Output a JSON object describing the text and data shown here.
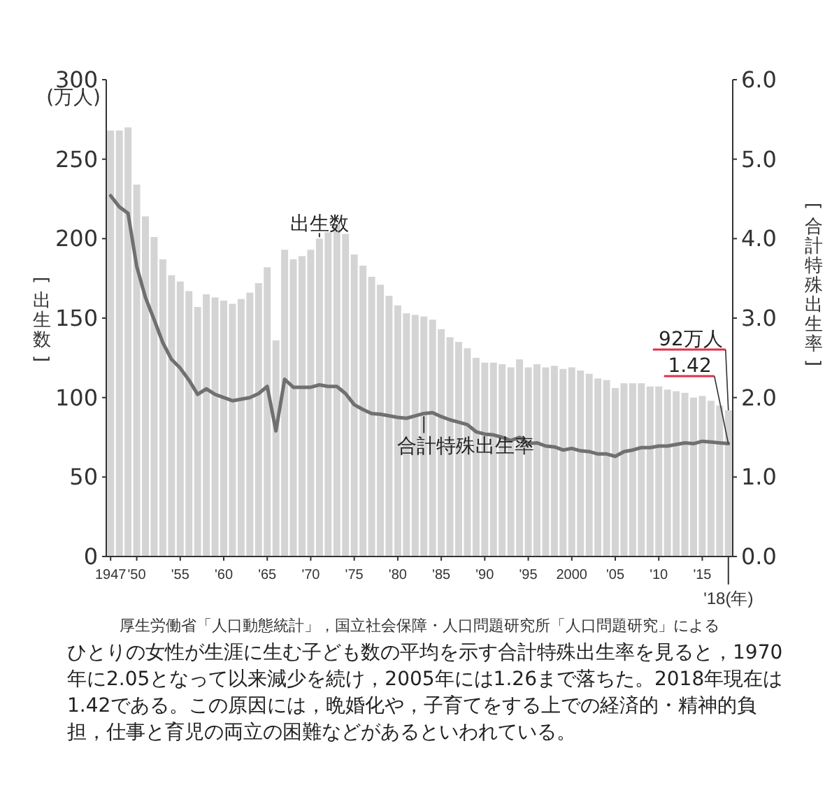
{
  "chart_data": {
    "type": "bar",
    "categories": [
      "1947",
      null,
      null,
      "'50",
      null,
      null,
      null,
      null,
      "'55",
      null,
      null,
      null,
      null,
      "'60",
      null,
      null,
      null,
      null,
      "'65",
      null,
      null,
      null,
      null,
      "'70",
      null,
      null,
      null,
      null,
      "'75",
      null,
      null,
      null,
      null,
      "'80",
      null,
      null,
      null,
      null,
      "'85",
      null,
      null,
      null,
      null,
      "'90",
      null,
      null,
      null,
      null,
      "'95",
      null,
      null,
      null,
      null,
      "2000",
      null,
      null,
      null,
      null,
      "'05",
      null,
      null,
      null,
      null,
      "'10",
      null,
      null,
      null,
      null,
      "'15",
      null,
      null,
      "'18(年)"
    ],
    "series": [
      {
        "name": "出生数",
        "type": "bar",
        "color": "#d4d4d4",
        "values": [
          268,
          268,
          270,
          234,
          214,
          201,
          187,
          177,
          173,
          167,
          157,
          165,
          163,
          161,
          159,
          162,
          166,
          172,
          182,
          136,
          193,
          187,
          189,
          193,
          200,
          204,
          209,
          203,
          190,
          183,
          176,
          171,
          164,
          158,
          153,
          152,
          151,
          149,
          143,
          138,
          135,
          131,
          125,
          122,
          122,
          121,
          119,
          124,
          119,
          121,
          119,
          120,
          118,
          119,
          117,
          115,
          112,
          111,
          106,
          109,
          109,
          109,
          107,
          107,
          105,
          104,
          103,
          100,
          101,
          98,
          95,
          92
        ],
        "value_labels": [
          null,
          null,
          null,
          null,
          null,
          null,
          null,
          null,
          null,
          null,
          null,
          null,
          null,
          null,
          null,
          null,
          null,
          null,
          null,
          null,
          null,
          null,
          null,
          null,
          null,
          null,
          null,
          null,
          null,
          null,
          null,
          null,
          null,
          null,
          null,
          null,
          null,
          null,
          null,
          null,
          null,
          null,
          null,
          null,
          null,
          null,
          null,
          null,
          null,
          null,
          null,
          null,
          null,
          null,
          null,
          null,
          null,
          null,
          null,
          null,
          null,
          null,
          null,
          null,
          null,
          null,
          null,
          null,
          null,
          null,
          null,
          "92万人"
        ]
      },
      {
        "name": "合計特殊出生率",
        "type": "line",
        "axis": "y2",
        "color": "#707070",
        "values": [
          4.54,
          4.4,
          4.32,
          3.65,
          3.26,
          2.98,
          2.69,
          2.48,
          2.37,
          2.22,
          2.04,
          2.11,
          2.04,
          2.0,
          1.96,
          1.98,
          2.0,
          2.05,
          2.14,
          1.58,
          2.23,
          2.13,
          2.13,
          2.13,
          2.16,
          2.14,
          2.14,
          2.05,
          1.91,
          1.85,
          1.8,
          1.79,
          1.77,
          1.75,
          1.74,
          1.77,
          1.8,
          1.81,
          1.76,
          1.72,
          1.69,
          1.66,
          1.57,
          1.54,
          1.53,
          1.5,
          1.46,
          1.5,
          1.42,
          1.43,
          1.39,
          1.38,
          1.34,
          1.36,
          1.33,
          1.32,
          1.29,
          1.29,
          1.26,
          1.32,
          1.34,
          1.37,
          1.37,
          1.39,
          1.39,
          1.41,
          1.43,
          1.42,
          1.45,
          1.44,
          1.43,
          1.42
        ],
        "value_labels": [
          null,
          null,
          null,
          null,
          null,
          null,
          null,
          null,
          null,
          null,
          null,
          null,
          null,
          null,
          null,
          null,
          null,
          null,
          null,
          null,
          null,
          null,
          null,
          null,
          null,
          null,
          null,
          null,
          null,
          null,
          null,
          null,
          null,
          null,
          null,
          null,
          null,
          null,
          null,
          null,
          null,
          null,
          null,
          null,
          null,
          null,
          null,
          null,
          null,
          null,
          null,
          null,
          null,
          null,
          null,
          null,
          null,
          null,
          null,
          null,
          null,
          null,
          null,
          null,
          null,
          null,
          null,
          null,
          null,
          null,
          null,
          "1.42"
        ]
      }
    ],
    "ylim": [
      0,
      300
    ],
    "yticks": [
      0,
      50,
      100,
      150,
      200,
      250,
      300
    ],
    "y2lim": [
      0,
      6
    ],
    "y2ticks": [
      {
        "value": 0,
        "label": "0.0"
      },
      {
        "value": 1,
        "label": "1.0"
      },
      {
        "value": 2,
        "label": "2.0"
      },
      {
        "value": 3,
        "label": "3.0"
      },
      {
        "value": 4,
        "label": "4.0"
      },
      {
        "value": 5,
        "label": "5.0"
      },
      {
        "value": 6,
        "label": "6.0"
      }
    ],
    "ylabel": "[出生数]",
    "y2label": "[合計特殊出生率]",
    "annotations": [
      "(万人)",
      "厚生労働省「人口動態統計」，国立社会保障・人口問題研究所「人口問題研究」による",
      "ひとりの女性が生涯に生む子ども数の平均を示す合計特殊出生率を見ると，1970年に2.05となって以来減少を続け，2005年には1.26まで落ちた。2018年現在は1.42である。この原因には，晩婚化や，子育てをする上での経済的・精神的負担，仕事と育児の両立の困難などがあるといわれている。"
    ]
  }
}
